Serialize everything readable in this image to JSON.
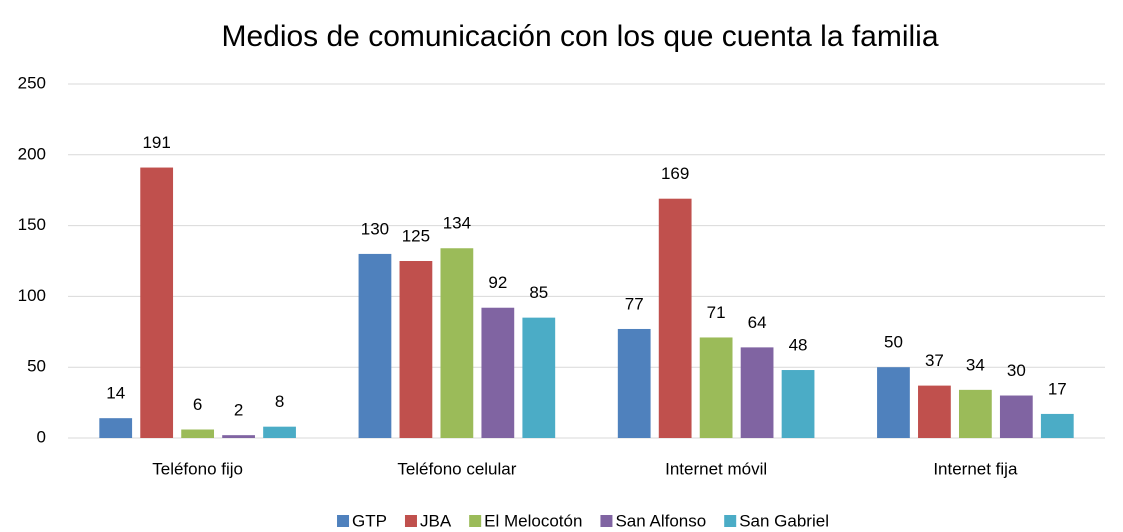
{
  "chart_data": {
    "type": "bar",
    "title": "Medios de comunicación con los que cuenta la familia",
    "categories": [
      "Teléfono fijo",
      "Teléfono celular",
      "Internet móvil",
      "Internet fija"
    ],
    "series": [
      {
        "name": "GTP",
        "color": "#4f81bd",
        "values": [
          14,
          130,
          77,
          50
        ]
      },
      {
        "name": "JBA",
        "color": "#c0504d",
        "values": [
          191,
          125,
          169,
          37
        ]
      },
      {
        "name": "El Melocotón",
        "color": "#9bbb59",
        "values": [
          6,
          134,
          71,
          34
        ]
      },
      {
        "name": "San Alfonso",
        "color": "#8064a2",
        "values": [
          2,
          92,
          64,
          30
        ]
      },
      {
        "name": "San Gabriel",
        "color": "#4bacc6",
        "values": [
          8,
          85,
          48,
          17
        ]
      }
    ],
    "ylim": [
      0,
      250
    ],
    "yticks": [
      0,
      50,
      100,
      150,
      200,
      250
    ],
    "grid": true,
    "legend": "bottom"
  }
}
